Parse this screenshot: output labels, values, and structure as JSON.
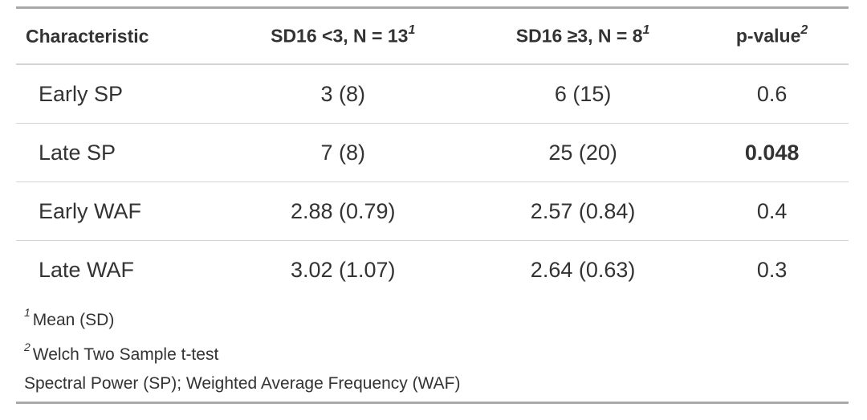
{
  "header": {
    "characteristic": "Characteristic",
    "group_a": "SD16 <3, N = 13",
    "group_a_sup": "1",
    "group_b": "SD16 ≥3, N = 8",
    "group_b_sup": "1",
    "pvalue": "p-value",
    "pvalue_sup": "2"
  },
  "rows": [
    {
      "label": "Early SP",
      "a": "3 (8)",
      "b": "6 (15)",
      "p": "0.6",
      "p_bold": false
    },
    {
      "label": "Late SP",
      "a": "7 (8)",
      "b": "25 (20)",
      "p": "0.048",
      "p_bold": true
    },
    {
      "label": "Early WAF",
      "a": "2.88 (0.79)",
      "b": "2.57 (0.84)",
      "p": "0.4",
      "p_bold": false
    },
    {
      "label": "Late WAF",
      "a": "3.02 (1.07)",
      "b": "2.64 (0.63)",
      "p": "0.3",
      "p_bold": false
    }
  ],
  "footnotes": [
    {
      "marker": "1",
      "text": "Mean (SD)"
    },
    {
      "marker": "2",
      "text": "Welch Two Sample t-test"
    },
    {
      "marker": "",
      "text": "Spectral Power (SP); Weighted Average Frequency (WAF)"
    }
  ]
}
